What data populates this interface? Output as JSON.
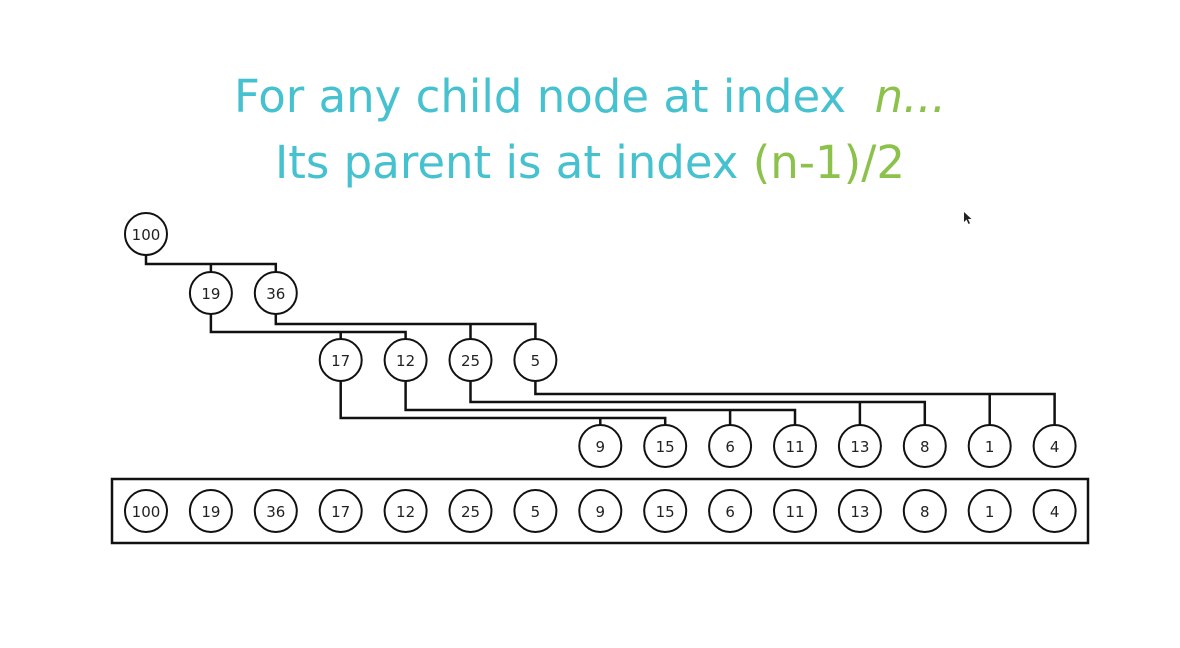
{
  "heading": {
    "line1_text": "For any child node at index",
    "line1_var": "n...",
    "line2_text": "Its parent is at index",
    "line2_formula": "(n-1)/2"
  },
  "heap": {
    "values": [
      "100",
      "19",
      "36",
      "17",
      "12",
      "25",
      "5",
      "9",
      "15",
      "6",
      "11",
      "13",
      "8",
      "1",
      "4"
    ]
  },
  "colors": {
    "heading": "#45c1cf",
    "accent": "#8cc24b",
    "stroke": "#111111"
  }
}
